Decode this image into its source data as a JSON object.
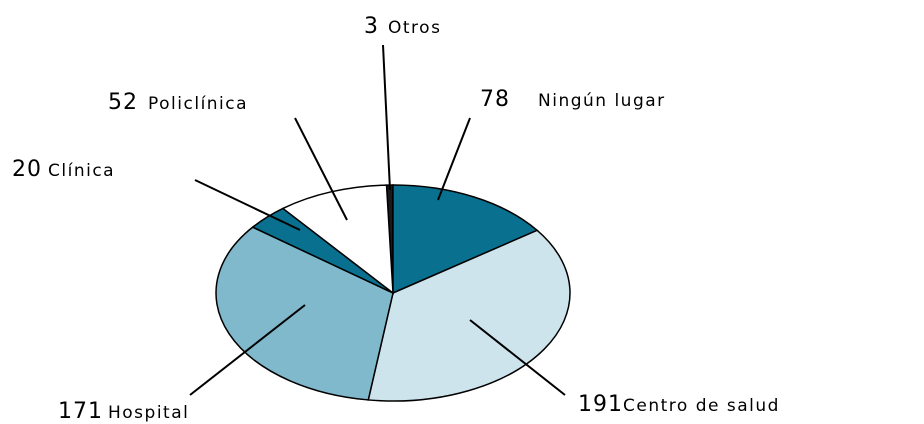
{
  "chart_data": {
    "type": "pie",
    "categories": [
      "Otros",
      "Ningún lugar",
      "Centro de salud",
      "Hospital",
      "Clínica",
      "Policlínica"
    ],
    "values": [
      3,
      78,
      191,
      171,
      20,
      52
    ],
    "colors": [
      "#1a1a1a",
      "#0a7090",
      "#cde4ec",
      "#80b8cc",
      "#0a7090",
      "#ffffff"
    ]
  }
}
